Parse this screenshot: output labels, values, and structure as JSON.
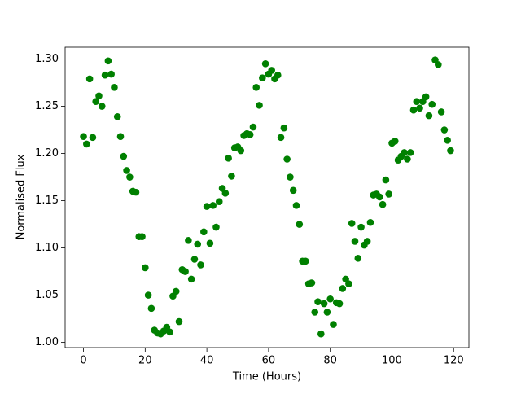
{
  "chart_data": {
    "type": "scatter",
    "xlabel": "Time (Hours)",
    "ylabel": "Normalised Flux",
    "color": "#008000",
    "xlim": [
      -5.95,
      124.95
    ],
    "ylim": [
      0.9945,
      1.3125
    ],
    "xticks": [
      0,
      20,
      40,
      60,
      80,
      100,
      120
    ],
    "yticks": [
      {
        "value": 1.0,
        "label": "1.00"
      },
      1.05,
      {
        "value": 1.1,
        "label": "1.10"
      },
      1.15,
      {
        "value": 1.2,
        "label": "1.20"
      },
      1.25,
      {
        "value": 1.3,
        "label": "1.30"
      }
    ],
    "x": [
      0,
      1,
      2,
      3,
      4,
      5,
      6,
      7,
      8,
      9,
      10,
      11,
      12,
      13,
      14,
      15,
      16,
      17,
      18,
      19,
      20,
      21,
      22,
      23,
      24,
      25,
      26,
      27,
      28,
      29,
      30,
      31,
      32,
      33,
      34,
      35,
      36,
      37,
      38,
      39,
      40,
      41,
      42,
      43,
      44,
      45,
      46,
      47,
      48,
      49,
      50,
      51,
      52,
      53,
      54,
      55,
      56,
      57,
      58,
      59,
      60,
      61,
      62,
      63,
      64,
      65,
      66,
      67,
      68,
      69,
      70,
      71,
      72,
      73,
      74,
      75,
      76,
      77,
      78,
      79,
      80,
      81,
      82,
      83,
      84,
      85,
      86,
      87,
      88,
      89,
      90,
      91,
      92,
      93,
      94,
      95,
      96,
      97,
      98,
      99,
      100,
      101,
      102,
      103,
      104,
      105,
      106,
      107,
      108,
      109,
      110,
      111,
      112,
      113,
      114,
      115,
      116,
      117,
      118,
      119
    ],
    "values": [
      1.218,
      1.21,
      1.279,
      1.217,
      1.255,
      1.261,
      1.25,
      1.283,
      1.298,
      1.284,
      1.27,
      1.239,
      1.218,
      1.197,
      1.182,
      1.175,
      1.16,
      1.159,
      1.112,
      1.112,
      1.079,
      1.05,
      1.036,
      1.013,
      1.01,
      1.009,
      1.012,
      1.016,
      1.011,
      1.049,
      1.054,
      1.022,
      1.077,
      1.075,
      1.108,
      1.067,
      1.088,
      1.104,
      1.082,
      1.117,
      1.144,
      1.105,
      1.145,
      1.122,
      1.149,
      1.163,
      1.158,
      1.195,
      1.176,
      1.206,
      1.207,
      1.203,
      1.219,
      1.221,
      1.22,
      1.228,
      1.27,
      1.251,
      1.28,
      1.295,
      1.284,
      1.288,
      1.279,
      1.283,
      1.217,
      1.227,
      1.194,
      1.175,
      1.161,
      1.145,
      1.125,
      1.086,
      1.086,
      1.062,
      1.063,
      1.032,
      1.043,
      1.009,
      1.041,
      1.032,
      1.046,
      1.019,
      1.042,
      1.041,
      1.057,
      1.067,
      1.062,
      1.126,
      1.107,
      1.089,
      1.122,
      1.103,
      1.107,
      1.127,
      1.156,
      1.157,
      1.154,
      1.146,
      1.172,
      1.157,
      1.211,
      1.213,
      1.193,
      1.197,
      1.201,
      1.194,
      1.201,
      1.246,
      1.255,
      1.248,
      1.255,
      1.26,
      1.24,
      1.252,
      1.299,
      1.294,
      1.244,
      1.225,
      1.214,
      1.203
    ]
  }
}
